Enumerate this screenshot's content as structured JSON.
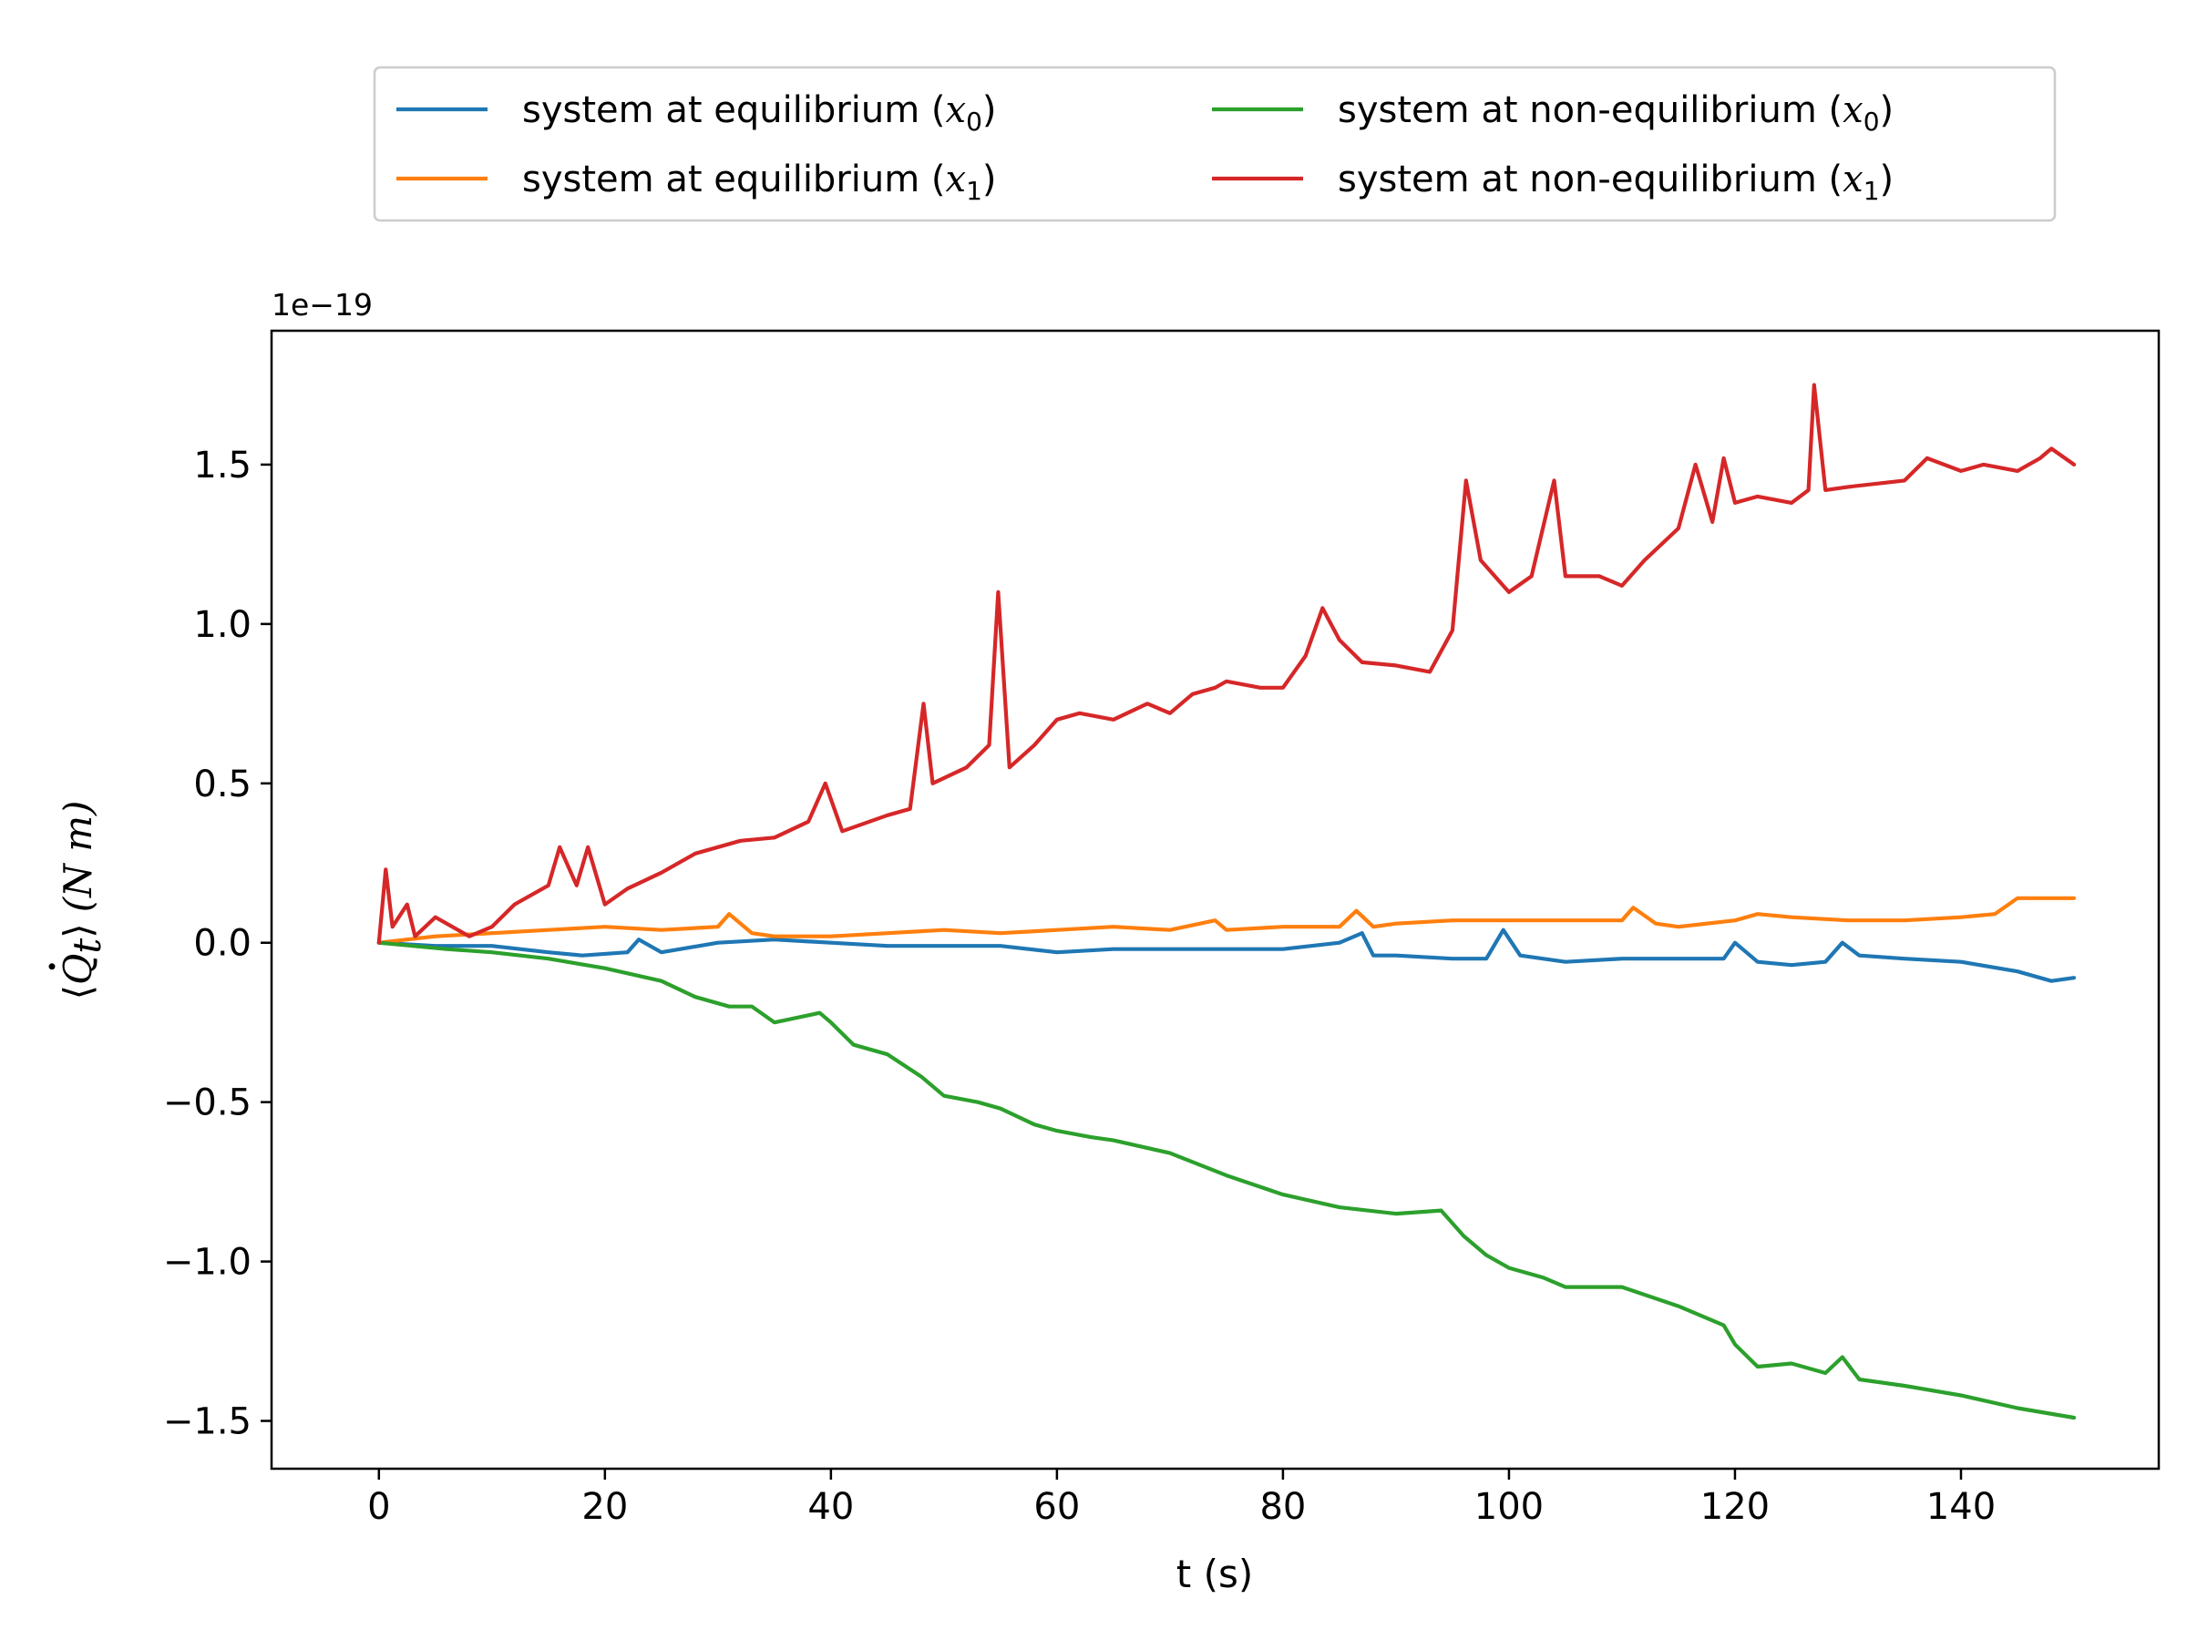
{
  "chart_data": {
    "type": "line",
    "xlabel": "t (s)",
    "ylabel": "⟨Q̇t⟩ (N m)",
    "ylabel_parts": {
      "open": "⟨",
      "q": "Q",
      "sub": "t",
      "close": "⟩",
      "units": "(N m)"
    },
    "y_offset_text": "1e−19",
    "xlim": [
      -9.5,
      157.5
    ],
    "ylim": [
      -1.65,
      1.92
    ],
    "y_multiplier": 1e-19,
    "xticks": [
      0,
      20,
      40,
      60,
      80,
      100,
      120,
      140
    ],
    "xtick_labels": [
      "0",
      "20",
      "40",
      "60",
      "80",
      "100",
      "120",
      "140"
    ],
    "yticks": [
      -1.5,
      -1.0,
      -0.5,
      0.0,
      0.5,
      1.0,
      1.5
    ],
    "ytick_labels": [
      "−1.5",
      "−1.0",
      "−0.5",
      "0.0",
      "0.5",
      "1.0",
      "1.5"
    ],
    "grid": false,
    "legend_position": "top-center-outside",
    "series": [
      {
        "name": "system at equilibrium (x0)",
        "label_prefix": "system at equilibrium (",
        "label_var": "x",
        "label_sub": "0",
        "label_suffix": ")",
        "color": "#1f77b4",
        "x": [
          0,
          5,
          10,
          15,
          18,
          22,
          23,
          25,
          30,
          35,
          40,
          45,
          50,
          55,
          60,
          65,
          70,
          75,
          80,
          85,
          87,
          88,
          90,
          95,
          98,
          99.5,
          101,
          105,
          110,
          115,
          119,
          120,
          122,
          125,
          128,
          129.5,
          131,
          135,
          140,
          145,
          148,
          150
        ],
        "y": [
          0,
          -0.01,
          -0.01,
          -0.03,
          -0.04,
          -0.03,
          0.01,
          -0.03,
          0.0,
          0.01,
          0.0,
          -0.01,
          -0.01,
          -0.01,
          -0.03,
          -0.02,
          -0.02,
          -0.02,
          -0.02,
          0.0,
          0.03,
          -0.04,
          -0.04,
          -0.05,
          -0.05,
          0.04,
          -0.04,
          -0.06,
          -0.05,
          -0.05,
          -0.05,
          0.0,
          -0.06,
          -0.07,
          -0.06,
          0.0,
          -0.04,
          -0.05,
          -0.06,
          -0.09,
          -0.12,
          -0.11
        ]
      },
      {
        "name": "system at equilibrium (x1)",
        "label_prefix": "system at equilibrium (",
        "label_var": "x",
        "label_sub": "1",
        "label_suffix": ")",
        "color": "#ff7f0e",
        "x": [
          0,
          5,
          10,
          15,
          20,
          25,
          30,
          31,
          33,
          35,
          40,
          45,
          50,
          55,
          60,
          65,
          70,
          74,
          75,
          80,
          85,
          86.5,
          88,
          90,
          95,
          98,
          100,
          105,
          110,
          111,
          113,
          115,
          120,
          122,
          125,
          130,
          135,
          140,
          143,
          145,
          148,
          150
        ],
        "y": [
          0,
          0.02,
          0.03,
          0.04,
          0.05,
          0.04,
          0.05,
          0.09,
          0.03,
          0.02,
          0.02,
          0.03,
          0.04,
          0.03,
          0.04,
          0.05,
          0.04,
          0.07,
          0.04,
          0.05,
          0.05,
          0.1,
          0.05,
          0.06,
          0.07,
          0.07,
          0.07,
          0.07,
          0.07,
          0.11,
          0.06,
          0.05,
          0.07,
          0.09,
          0.08,
          0.07,
          0.07,
          0.08,
          0.09,
          0.14,
          0.14,
          0.14
        ]
      },
      {
        "name": "system at non-equilibrium (x0)",
        "label_prefix": "system at non-equilibrium (",
        "label_var": "x",
        "label_sub": "0",
        "label_suffix": ")",
        "color": "#2ca02c",
        "x": [
          0,
          3,
          6,
          10,
          15,
          20,
          25,
          28,
          31,
          33,
          35,
          39,
          40,
          42,
          45,
          48,
          50,
          53,
          55,
          58,
          60,
          63,
          65,
          70,
          75,
          80,
          85,
          90,
          94,
          96,
          98,
          100,
          103,
          105,
          110,
          115,
          119,
          120,
          122,
          125,
          128,
          129.5,
          131,
          135,
          140,
          145,
          150
        ],
        "y": [
          0,
          -0.01,
          -0.02,
          -0.03,
          -0.05,
          -0.08,
          -0.12,
          -0.17,
          -0.2,
          -0.2,
          -0.25,
          -0.22,
          -0.25,
          -0.32,
          -0.35,
          -0.42,
          -0.48,
          -0.5,
          -0.52,
          -0.57,
          -0.59,
          -0.61,
          -0.62,
          -0.66,
          -0.73,
          -0.79,
          -0.83,
          -0.85,
          -0.84,
          -0.92,
          -0.98,
          -1.02,
          -1.05,
          -1.08,
          -1.08,
          -1.14,
          -1.2,
          -1.26,
          -1.33,
          -1.32,
          -1.35,
          -1.3,
          -1.37,
          -1.39,
          -1.42,
          -1.46,
          -1.49
        ]
      },
      {
        "name": "system at non-equilibrium (x1)",
        "label_prefix": "system at non-equilibrium (",
        "label_var": "x",
        "label_sub": "1",
        "label_suffix": ")",
        "color": "#d62728",
        "x": [
          0,
          0.6,
          1.2,
          2.5,
          3.2,
          5,
          8,
          10,
          12,
          15,
          16,
          17.5,
          18.5,
          20,
          22,
          25,
          28,
          30,
          32,
          35,
          38,
          39.5,
          41,
          45,
          47,
          48.2,
          49,
          52,
          54,
          54.8,
          55.8,
          58,
          60,
          62,
          65,
          68,
          70,
          72,
          74,
          75,
          78,
          80,
          82,
          83.5,
          85,
          87,
          90,
          93,
          95,
          96.2,
          97.5,
          100,
          102,
          104,
          105,
          108,
          110,
          112,
          115,
          116.5,
          118,
          119,
          120,
          122,
          125,
          126.5,
          127,
          128,
          130,
          135,
          137,
          140,
          142,
          145,
          147,
          148,
          150
        ],
        "y": [
          0,
          0.23,
          0.05,
          0.12,
          0.02,
          0.08,
          0.02,
          0.05,
          0.12,
          0.18,
          0.3,
          0.18,
          0.3,
          0.12,
          0.17,
          0.22,
          0.28,
          0.3,
          0.32,
          0.33,
          0.38,
          0.5,
          0.35,
          0.4,
          0.42,
          0.75,
          0.5,
          0.55,
          0.62,
          1.1,
          0.55,
          0.62,
          0.7,
          0.72,
          0.7,
          0.75,
          0.72,
          0.78,
          0.8,
          0.82,
          0.8,
          0.8,
          0.9,
          1.05,
          0.95,
          0.88,
          0.87,
          0.85,
          0.98,
          1.45,
          1.2,
          1.1,
          1.15,
          1.45,
          1.15,
          1.15,
          1.12,
          1.2,
          1.3,
          1.5,
          1.32,
          1.52,
          1.38,
          1.4,
          1.38,
          1.42,
          1.75,
          1.42,
          1.43,
          1.45,
          1.52,
          1.48,
          1.5,
          1.48,
          1.52,
          1.55,
          1.5
        ]
      }
    ]
  }
}
